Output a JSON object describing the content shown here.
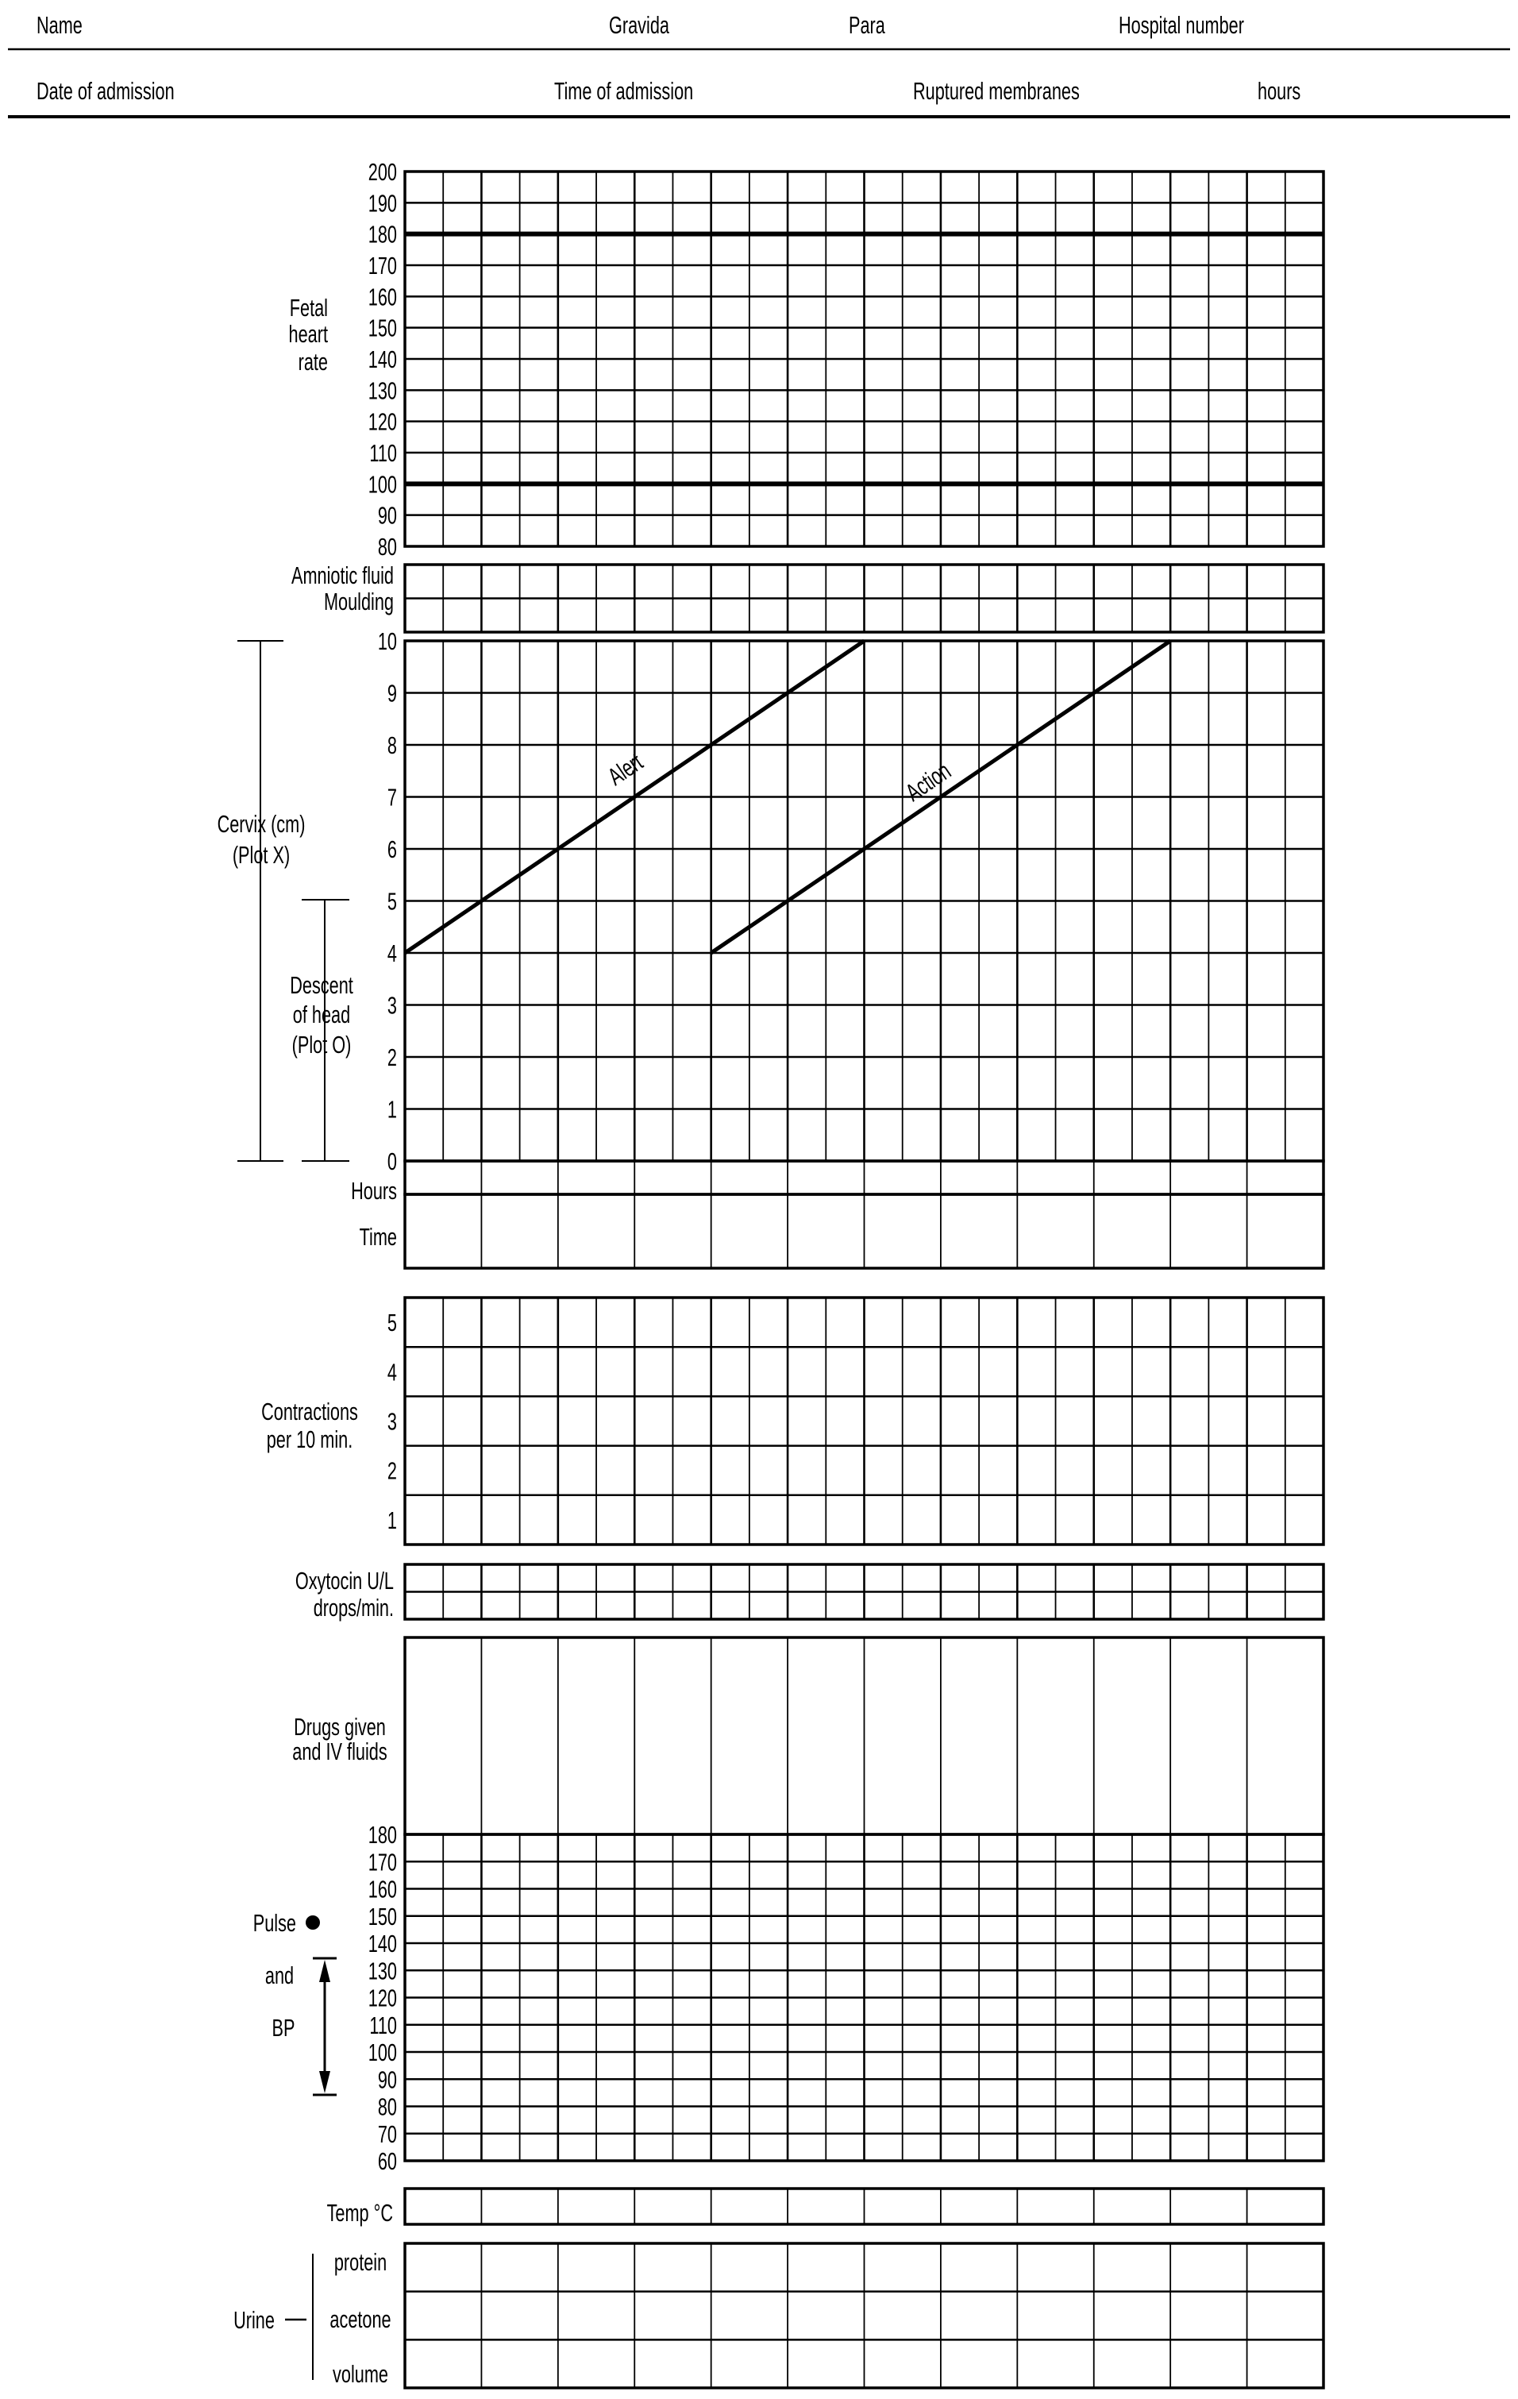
{
  "header": {
    "name": "Name",
    "gravida": "Gravida",
    "para": "Para",
    "hospital_number": "Hospital number",
    "date_of_admission": "Date of admission",
    "time_of_admission": "Time of admission",
    "ruptured_membranes": "Ruptured membranes",
    "hours": "hours"
  },
  "fetal_heart_rate": {
    "label": [
      "Fetal",
      "heart",
      "rate"
    ],
    "ticks": [
      "200",
      "190",
      "180",
      "170",
      "160",
      "150",
      "140",
      "130",
      "120",
      "110",
      "100",
      "90",
      "80"
    ],
    "bold_lines": [
      180,
      100
    ]
  },
  "amniotic": {
    "label_1": "Amniotic fluid",
    "label_2": "Moulding"
  },
  "cervix": {
    "label": [
      "Cervix (cm)",
      "(Plot X)"
    ],
    "descent_label": [
      "Descent",
      "of head",
      "(Plot O)"
    ],
    "ticks": [
      "10",
      "9",
      "8",
      "7",
      "6",
      "5",
      "4",
      "3",
      "2",
      "1",
      "0"
    ],
    "alert_label": "Alert",
    "action_label": "Action",
    "alert_line_hours_cm": {
      "from": [
        0,
        4
      ],
      "to": [
        6,
        10
      ]
    },
    "action_line_hours_cm": {
      "from": [
        4,
        4
      ],
      "to": [
        10,
        10
      ]
    },
    "hours_label": "Hours",
    "time_label": "Time"
  },
  "contractions": {
    "label": [
      "Contractions",
      "per 10 min."
    ],
    "ticks": [
      "5",
      "4",
      "3",
      "2",
      "1"
    ]
  },
  "oxytocin": {
    "label_1": "Oxytocin U/L",
    "label_2": "drops/min."
  },
  "drugs": {
    "label": [
      "Drugs given",
      "and IV fluids"
    ]
  },
  "pulse_bp": {
    "pulse_label": "Pulse",
    "and_label": "and",
    "bp_label": "BP",
    "ticks": [
      "180",
      "170",
      "160",
      "150",
      "140",
      "130",
      "120",
      "110",
      "100",
      "90",
      "80",
      "70",
      "60"
    ]
  },
  "temp": {
    "label": "Temp °C"
  },
  "urine": {
    "label": "Urine",
    "rows": [
      "protein",
      "acetone",
      "volume"
    ]
  }
}
